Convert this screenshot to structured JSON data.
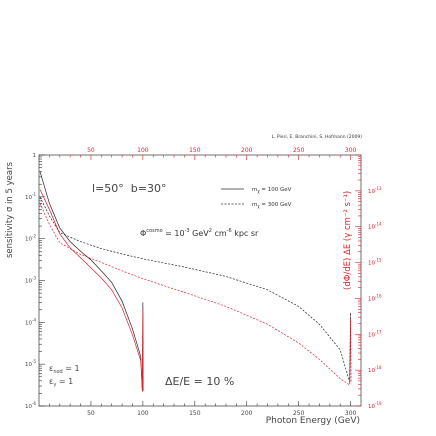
{
  "chart_data": {
    "type": "line",
    "credit": "L. Pieri, E. Branchini, S. Hofmann (2009)",
    "xlabel": "Photon Energy (GeV)",
    "ylabel_left": "sensitivity σ in 5 years",
    "ylabel_right": "(dΦ/dE) ΔE (γ cm⁻² s⁻¹)",
    "xlim": [
      0,
      310
    ],
    "ylim_left": [
      1e-06,
      1
    ],
    "ylim_right_exp": [
      -19,
      -12
    ],
    "xticks_bottom": [
      "50",
      "100",
      "150",
      "200",
      "250",
      "300"
    ],
    "xticks_top": [
      "50",
      "100",
      "150",
      "200",
      "250",
      "300"
    ],
    "yticks_left": [
      {
        "base": "10",
        "exp": "-6"
      },
      {
        "base": "10",
        "exp": "-5"
      },
      {
        "base": "10",
        "exp": "-4"
      },
      {
        "base": "10",
        "exp": "-3"
      },
      {
        "base": "10",
        "exp": "-2"
      },
      {
        "base": "10",
        "exp": "-1"
      },
      {
        "base": "1",
        "exp": ""
      }
    ],
    "yticks_right": [
      {
        "base": "10",
        "exp": "-19"
      },
      {
        "base": "10",
        "exp": "-18"
      },
      {
        "base": "10",
        "exp": "-17"
      },
      {
        "base": "10",
        "exp": "-16"
      },
      {
        "base": "10",
        "exp": "-15"
      },
      {
        "base": "10",
        "exp": "-14"
      },
      {
        "base": "10",
        "exp": "-13"
      }
    ],
    "annotations": {
      "coords": "l=50°  b=30°",
      "flux_prefix": "Φ",
      "flux_sup": "cosmo",
      "flux_mid": " = 10",
      "flux_exp": "-3",
      "flux_units_a": " GeV",
      "flux_units_sup1": "2",
      "flux_units_b": " cm",
      "flux_units_sup2": "-6",
      "flux_units_c": " kpc sr",
      "resolution": "ΔE/E = 10 %",
      "eff_nod": "ε",
      "eff_nod_sub": "nod",
      "eff_nod_val": " = 1",
      "eff_gamma": "ε",
      "eff_gamma_sub": "γ",
      "eff_gamma_val": " = 1"
    },
    "legend": [
      {
        "label_base": "m",
        "label_sub": "χ",
        "label_val": " = 100 GeV",
        "style": "solid"
      },
      {
        "label_base": "m",
        "label_sub": "χ",
        "label_val": " = 300 GeV",
        "style": "dashed"
      }
    ],
    "series": [
      {
        "style": "solid",
        "color": "#222222",
        "axis": "left",
        "points": [
          [
            1,
            0.4
          ],
          [
            10,
            0.07
          ],
          [
            20,
            0.018
          ],
          [
            30,
            0.0085
          ],
          [
            40,
            0.005
          ],
          [
            50,
            0.0031
          ],
          [
            60,
            0.0017
          ],
          [
            70,
            0.0009
          ],
          [
            80,
            0.00032
          ],
          [
            90,
            7e-05
          ],
          [
            98,
            1.5e-05
          ],
          [
            99.5,
            2.3e-06
          ],
          [
            100,
            0.0003
          ],
          [
            100.3,
            2.5e-06
          ]
        ]
      },
      {
        "style": "solid",
        "color": "#e0202a",
        "axis": "left",
        "points": [
          [
            1,
            0.15
          ],
          [
            10,
            0.05
          ],
          [
            20,
            0.013
          ],
          [
            30,
            0.006
          ],
          [
            40,
            0.0035
          ],
          [
            50,
            0.002
          ],
          [
            60,
            0.00115
          ],
          [
            70,
            0.0006
          ],
          [
            80,
            0.00022
          ],
          [
            90,
            5e-05
          ],
          [
            98,
            1.2e-05
          ],
          [
            99.5,
            2.2e-06
          ],
          [
            100,
            0.0002
          ],
          [
            100.3,
            2.3e-06
          ]
        ]
      },
      {
        "style": "dashed",
        "color": "#222222",
        "axis": "left",
        "points": [
          [
            1,
            0.1
          ],
          [
            10,
            0.035
          ],
          [
            20,
            0.014
          ],
          [
            40,
            0.0085
          ],
          [
            60,
            0.0058
          ],
          [
            80,
            0.0043
          ],
          [
            100,
            0.0033
          ],
          [
            140,
            0.0021
          ],
          [
            180,
            0.00125
          ],
          [
            220,
            0.0006
          ],
          [
            250,
            0.00024
          ],
          [
            270,
            9e-05
          ],
          [
            290,
            2.2e-05
          ],
          [
            299,
            3.8e-06
          ],
          [
            300,
            0.00017
          ],
          [
            300.3,
            4e-06
          ]
        ]
      },
      {
        "style": "dashed",
        "color": "#e0202a",
        "axis": "left",
        "points": [
          [
            1,
            0.07
          ],
          [
            10,
            0.022
          ],
          [
            20,
            0.008
          ],
          [
            40,
            0.0042
          ],
          [
            60,
            0.0027
          ],
          [
            80,
            0.0017
          ],
          [
            100,
            0.0011
          ],
          [
            140,
            0.00052
          ],
          [
            180,
            0.00024
          ],
          [
            220,
            9e-05
          ],
          [
            250,
            3.2e-05
          ],
          [
            270,
            1.3e-05
          ],
          [
            290,
            4.5e-06
          ],
          [
            299,
            3.2e-06
          ],
          [
            300,
            0.00012
          ],
          [
            300.3,
            3.3e-06
          ]
        ]
      }
    ]
  }
}
